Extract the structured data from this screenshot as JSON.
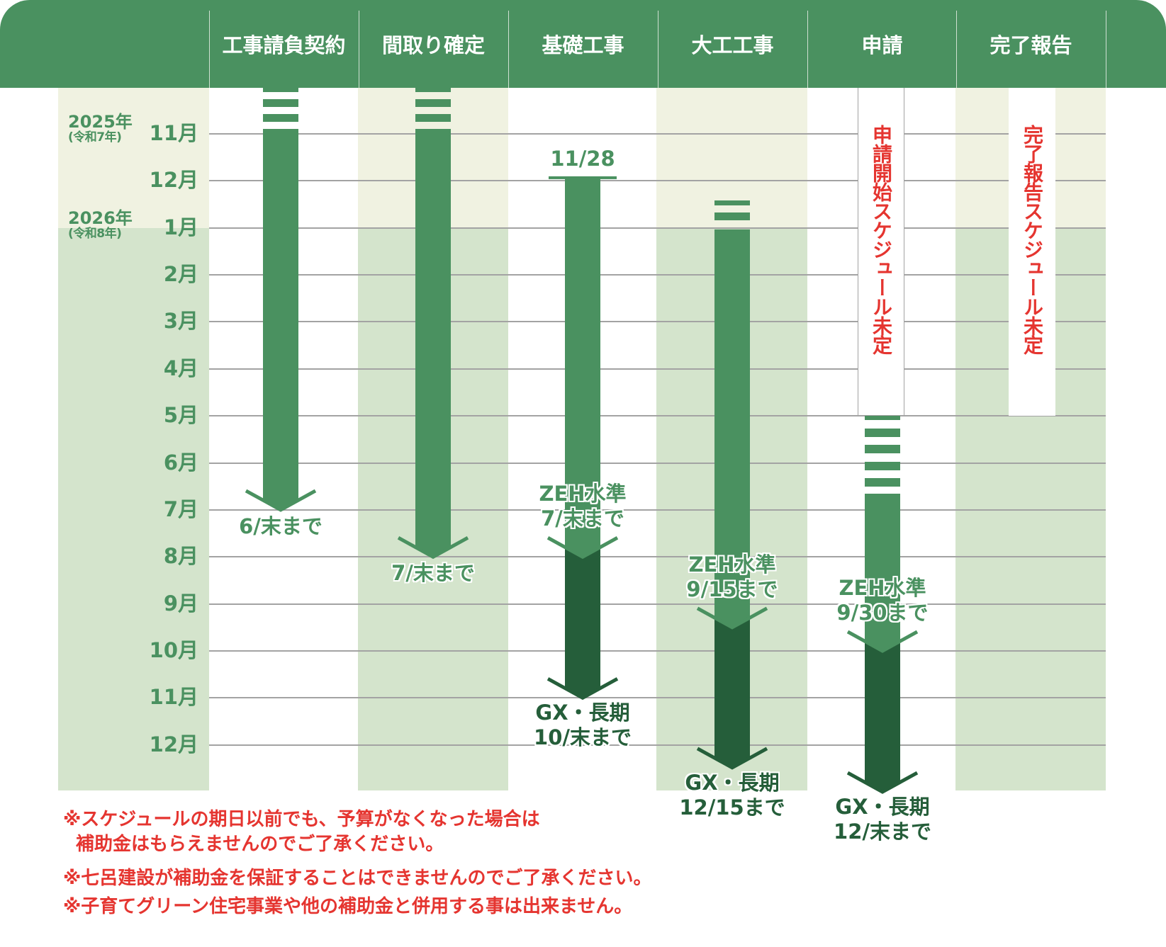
{
  "header": {
    "columns": [
      "工事請負契約",
      "間取り確定",
      "基礎工事",
      "大工工事",
      "申請",
      "完了報告"
    ]
  },
  "years": [
    {
      "year": "2025年",
      "era": "(令和7年)"
    },
    {
      "year": "2026年",
      "era": "(令和8年)"
    }
  ],
  "months": [
    "11月",
    "12月",
    "1月",
    "2月",
    "3月",
    "4月",
    "5月",
    "6月",
    "7月",
    "8月",
    "9月",
    "10月",
    "11月",
    "12月"
  ],
  "timeline_start": "2025-11",
  "arrows": [
    {
      "column": 0,
      "start": "2025-11-01",
      "end": "2026-06-30",
      "label": [
        "6/末まで"
      ]
    },
    {
      "column": 1,
      "start": "2025-11-01",
      "end": "2026-07-31",
      "label": [
        "7/末まで"
      ]
    },
    {
      "column": 2,
      "start": "2025-11-28",
      "start_label": "11/28",
      "zeh": {
        "end": "2026-07-31",
        "label": [
          "ZEH水準",
          "7/末まで"
        ]
      },
      "gx": {
        "end": "2026-10-31",
        "label": [
          "GX・長期",
          "10/末まで"
        ]
      }
    },
    {
      "column": 3,
      "start": "2026-01-01",
      "zeh": {
        "end": "2026-09-15",
        "label": [
          "ZEH水準",
          "9/15まで"
        ]
      },
      "gx": {
        "end": "2026-12-15",
        "label": [
          "GX・長期",
          "12/15まで"
        ]
      }
    },
    {
      "column": 4,
      "zeh": {
        "end": "2026-09-30",
        "label": [
          "ZEH水準",
          "9/30まで"
        ]
      },
      "gx": {
        "end": "2026-12-31",
        "label": [
          "GX・長期",
          "12/末まで"
        ]
      }
    }
  ],
  "undecided": {
    "application": "申請開始スケジュール未定",
    "completion": "完了報告スケジュール未定"
  },
  "notes": [
    "※スケジュールの期日以前でも、予算がなくなった場合は",
    "補助金はもらえませんのでご了承ください。",
    "※七呂建設が補助金を保証することはできませんのでご了承ください。",
    "※子育てグリーン住宅事業や他の補助金と併用する事は出来ません。"
  ],
  "colors": {
    "header": "#4a9160",
    "arrow_zeh": "#4a9160",
    "arrow_gx": "#255e3a",
    "band_2025": "#f0f2e1",
    "band_2026": "#d4e4cc",
    "notice_red": "#e53530"
  }
}
